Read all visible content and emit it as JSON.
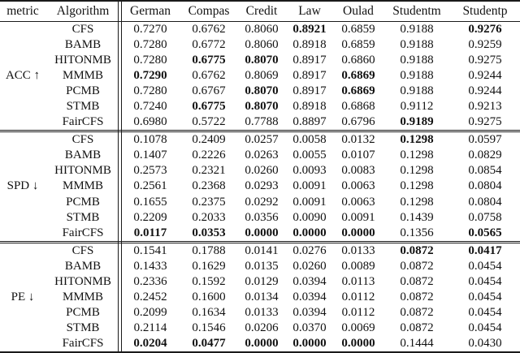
{
  "table": {
    "columns": [
      "metric",
      "Algorithm",
      "German",
      "Compas",
      "Credit",
      "Law",
      "Oulad",
      "Studentm",
      "Studentp"
    ],
    "sections": [
      {
        "metric": "ACC ↑",
        "rows": [
          {
            "algorithm": "CFS",
            "values": [
              "0.7270",
              "0.6762",
              "0.8060",
              "0.8921",
              "0.6859",
              "0.9188",
              "0.9276"
            ],
            "bold": [
              false,
              false,
              false,
              true,
              false,
              false,
              true
            ]
          },
          {
            "algorithm": "BAMB",
            "values": [
              "0.7280",
              "0.6772",
              "0.8060",
              "0.8918",
              "0.6859",
              "0.9188",
              "0.9259"
            ],
            "bold": [
              false,
              false,
              false,
              false,
              false,
              false,
              false
            ]
          },
          {
            "algorithm": "HITONMB",
            "values": [
              "0.7280",
              "0.6775",
              "0.8070",
              "0.8917",
              "0.6860",
              "0.9188",
              "0.9275"
            ],
            "bold": [
              false,
              true,
              true,
              false,
              false,
              false,
              false
            ]
          },
          {
            "algorithm": "MMMB",
            "values": [
              "0.7290",
              "0.6762",
              "0.8069",
              "0.8917",
              "0.6869",
              "0.9188",
              "0.9244"
            ],
            "bold": [
              true,
              false,
              false,
              false,
              true,
              false,
              false
            ]
          },
          {
            "algorithm": "PCMB",
            "values": [
              "0.7280",
              "0.6767",
              "0.8070",
              "0.8917",
              "0.6869",
              "0.9188",
              "0.9244"
            ],
            "bold": [
              false,
              false,
              true,
              false,
              true,
              false,
              false
            ]
          },
          {
            "algorithm": "STMB",
            "values": [
              "0.7240",
              "0.6775",
              "0.8070",
              "0.8918",
              "0.6868",
              "0.9112",
              "0.9213"
            ],
            "bold": [
              false,
              true,
              true,
              false,
              false,
              false,
              false
            ]
          },
          {
            "algorithm": "FairCFS",
            "values": [
              "0.6980",
              "0.5722",
              "0.7788",
              "0.8897",
              "0.6796",
              "0.9189",
              "0.9275"
            ],
            "bold": [
              false,
              false,
              false,
              false,
              false,
              true,
              false
            ]
          }
        ]
      },
      {
        "metric": "SPD ↓",
        "rows": [
          {
            "algorithm": "CFS",
            "values": [
              "0.1078",
              "0.2409",
              "0.0257",
              "0.0058",
              "0.0132",
              "0.1298",
              "0.0597"
            ],
            "bold": [
              false,
              false,
              false,
              false,
              false,
              true,
              false
            ]
          },
          {
            "algorithm": "BAMB",
            "values": [
              "0.1407",
              "0.2226",
              "0.0263",
              "0.0055",
              "0.0107",
              "0.1298",
              "0.0829"
            ],
            "bold": [
              false,
              false,
              false,
              false,
              false,
              false,
              false
            ]
          },
          {
            "algorithm": "HITONMB",
            "values": [
              "0.2573",
              "0.2321",
              "0.0260",
              "0.0093",
              "0.0083",
              "0.1298",
              "0.0854"
            ],
            "bold": [
              false,
              false,
              false,
              false,
              false,
              false,
              false
            ]
          },
          {
            "algorithm": "MMMB",
            "values": [
              "0.2561",
              "0.2368",
              "0.0293",
              "0.0091",
              "0.0063",
              "0.1298",
              "0.0804"
            ],
            "bold": [
              false,
              false,
              false,
              false,
              false,
              false,
              false
            ]
          },
          {
            "algorithm": "PCMB",
            "values": [
              "0.1655",
              "0.2375",
              "0.0292",
              "0.0091",
              "0.0063",
              "0.1298",
              "0.0804"
            ],
            "bold": [
              false,
              false,
              false,
              false,
              false,
              false,
              false
            ]
          },
          {
            "algorithm": "STMB",
            "values": [
              "0.2209",
              "0.2033",
              "0.0356",
              "0.0090",
              "0.0091",
              "0.1439",
              "0.0758"
            ],
            "bold": [
              false,
              false,
              false,
              false,
              false,
              false,
              false
            ]
          },
          {
            "algorithm": "FairCFS",
            "values": [
              "0.0117",
              "0.0353",
              "0.0000",
              "0.0000",
              "0.0000",
              "0.1356",
              "0.0565"
            ],
            "bold": [
              true,
              true,
              true,
              true,
              true,
              false,
              true
            ]
          }
        ]
      },
      {
        "metric": "PE ↓",
        "rows": [
          {
            "algorithm": "CFS",
            "values": [
              "0.1541",
              "0.1788",
              "0.0141",
              "0.0276",
              "0.0133",
              "0.0872",
              "0.0417"
            ],
            "bold": [
              false,
              false,
              false,
              false,
              false,
              true,
              true
            ]
          },
          {
            "algorithm": "BAMB",
            "values": [
              "0.1433",
              "0.1629",
              "0.0135",
              "0.0260",
              "0.0089",
              "0.0872",
              "0.0454"
            ],
            "bold": [
              false,
              false,
              false,
              false,
              false,
              false,
              false
            ]
          },
          {
            "algorithm": "HITONMB",
            "values": [
              "0.2336",
              "0.1592",
              "0.0129",
              "0.0394",
              "0.0113",
              "0.0872",
              "0.0454"
            ],
            "bold": [
              false,
              false,
              false,
              false,
              false,
              false,
              false
            ]
          },
          {
            "algorithm": "MMMB",
            "values": [
              "0.2452",
              "0.1600",
              "0.0134",
              "0.0394",
              "0.0112",
              "0.0872",
              "0.0454"
            ],
            "bold": [
              false,
              false,
              false,
              false,
              false,
              false,
              false
            ]
          },
          {
            "algorithm": "PCMB",
            "values": [
              "0.2099",
              "0.1634",
              "0.0133",
              "0.0394",
              "0.0112",
              "0.0872",
              "0.0454"
            ],
            "bold": [
              false,
              false,
              false,
              false,
              false,
              false,
              false
            ]
          },
          {
            "algorithm": "STMB",
            "values": [
              "0.2114",
              "0.1546",
              "0.0206",
              "0.0370",
              "0.0069",
              "0.0872",
              "0.0454"
            ],
            "bold": [
              false,
              false,
              false,
              false,
              false,
              false,
              false
            ]
          },
          {
            "algorithm": "FairCFS",
            "values": [
              "0.0204",
              "0.0477",
              "0.0000",
              "0.0000",
              "0.0000",
              "0.1444",
              "0.0430"
            ],
            "bold": [
              true,
              true,
              true,
              true,
              true,
              false,
              false
            ]
          }
        ]
      }
    ]
  },
  "colors": {
    "background": "#ffffff",
    "text": "#111111",
    "rule": "#1a1a1a"
  }
}
